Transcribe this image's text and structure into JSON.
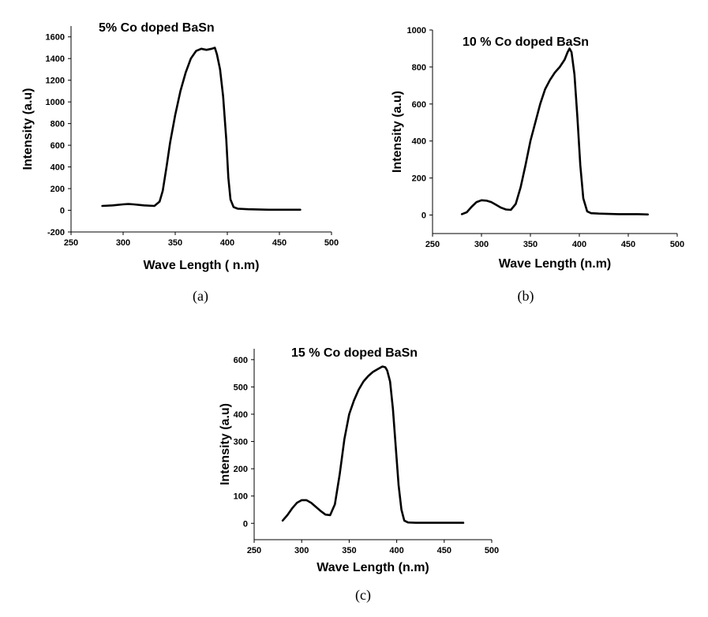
{
  "chart_data": [
    {
      "type": "line",
      "caption": "(a)",
      "title": "5% Co doped BaSn",
      "xlabel": "Wave Length ( n.m)",
      "ylabel": "Intensity (a.u)",
      "xlim": [
        250,
        500
      ],
      "ylim": [
        -200,
        1700
      ],
      "xticks": [
        250,
        300,
        350,
        400,
        450,
        500
      ],
      "yticks": [
        -200,
        0,
        200,
        400,
        600,
        800,
        1000,
        1200,
        1400,
        1600
      ],
      "series": [
        {
          "name": "5% Co doped BaSn",
          "x": [
            280,
            290,
            300,
            305,
            310,
            320,
            330,
            335,
            338,
            342,
            345,
            350,
            355,
            360,
            365,
            370,
            375,
            380,
            385,
            388,
            390,
            393,
            396,
            399,
            401,
            403,
            406,
            410,
            420,
            440,
            460,
            470
          ],
          "y": [
            40,
            45,
            55,
            58,
            55,
            45,
            40,
            80,
            180,
            420,
            620,
            880,
            1100,
            1270,
            1400,
            1470,
            1490,
            1480,
            1490,
            1500,
            1440,
            1300,
            1050,
            650,
            300,
            100,
            30,
            15,
            10,
            5,
            5,
            5
          ]
        }
      ]
    },
    {
      "type": "line",
      "caption": "(b)",
      "title": "10 % Co doped BaSn",
      "xlabel": "Wave Length (n.m)",
      "ylabel": "Intensity (a.u)",
      "xlim": [
        250,
        500
      ],
      "ylim": [
        -100,
        1000
      ],
      "xticks": [
        250,
        300,
        350,
        400,
        450,
        500
      ],
      "yticks": [
        0,
        200,
        400,
        600,
        800,
        1000
      ],
      "series": [
        {
          "name": "10 % Co doped BaSn",
          "x": [
            280,
            285,
            290,
            295,
            300,
            305,
            310,
            315,
            320,
            325,
            330,
            335,
            340,
            345,
            350,
            355,
            360,
            365,
            370,
            375,
            380,
            385,
            388,
            390,
            392,
            395,
            398,
            401,
            404,
            408,
            412,
            420,
            440,
            460,
            470
          ],
          "y": [
            5,
            15,
            45,
            70,
            80,
            78,
            70,
            55,
            40,
            30,
            28,
            60,
            150,
            270,
            400,
            500,
            600,
            680,
            730,
            770,
            800,
            840,
            880,
            900,
            880,
            760,
            530,
            270,
            90,
            20,
            10,
            8,
            5,
            5,
            3
          ]
        }
      ]
    },
    {
      "type": "line",
      "caption": "(c)",
      "title": "15 % Co doped BaSn",
      "xlabel": "Wave Length (n.m)",
      "ylabel": "Intensity (a.u)",
      "xlim": [
        250,
        500
      ],
      "ylim": [
        -60,
        640
      ],
      "xticks": [
        250,
        300,
        350,
        400,
        450,
        500
      ],
      "yticks": [
        0,
        100,
        200,
        300,
        400,
        500,
        600
      ],
      "series": [
        {
          "name": "15 % Co doped BaSn",
          "x": [
            280,
            285,
            290,
            295,
            300,
            305,
            310,
            315,
            320,
            325,
            330,
            335,
            340,
            345,
            350,
            355,
            360,
            365,
            370,
            375,
            380,
            385,
            388,
            390,
            393,
            396,
            399,
            402,
            405,
            408,
            412,
            420,
            440,
            460,
            470
          ],
          "y": [
            10,
            30,
            55,
            75,
            85,
            85,
            75,
            60,
            45,
            32,
            30,
            70,
            180,
            310,
            400,
            450,
            490,
            520,
            540,
            555,
            565,
            575,
            572,
            560,
            520,
            420,
            280,
            140,
            50,
            10,
            3,
            2,
            2,
            2,
            2
          ]
        }
      ]
    }
  ]
}
